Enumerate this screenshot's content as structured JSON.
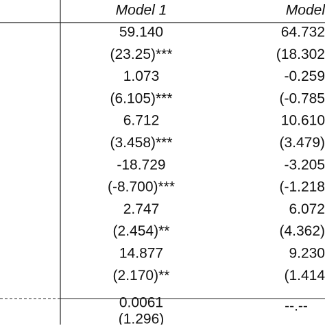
{
  "header": {
    "model1": "Model 1",
    "model2": "Model"
  },
  "rows": [
    [
      "59.140",
      "64.732"
    ],
    [
      "(23.25)***",
      "(18.302"
    ],
    [
      "1.073",
      "-0.259"
    ],
    [
      "(6.105)***",
      "(-0.785"
    ],
    [
      "6.712",
      "10.610"
    ],
    [
      "(3.458)***",
      "(3.479)"
    ],
    [
      "-18.729",
      "-3.205"
    ],
    [
      "(-8.700)***",
      "(-1.218"
    ],
    [
      "2.747",
      "6.072"
    ],
    [
      "(2.454)**",
      "(4.362)"
    ],
    [
      "14.877",
      "9.230"
    ],
    [
      "(2.170)**",
      "(1.414"
    ]
  ],
  "footer": {
    "model1": [
      "0.0061",
      "(1.296)"
    ],
    "model2": "--.--"
  }
}
